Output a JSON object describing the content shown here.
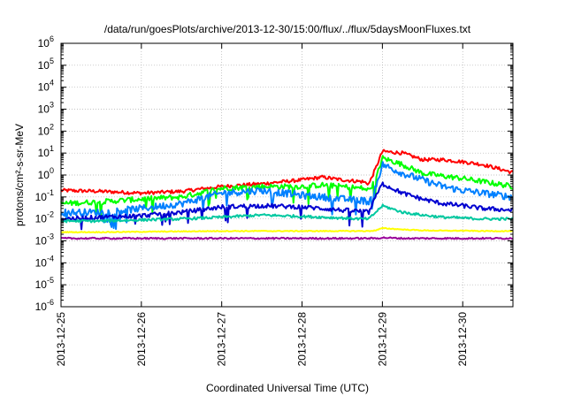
{
  "chart_data": {
    "type": "line",
    "title": "/data/run/goesPlots/archive/2013-12-30/15:00/flux/../flux/5daysMoonFluxes.txt",
    "xlabel": "Coordinated Universal Time (UTC)",
    "ylabel": "protons/cm²-s-sr-MeV",
    "y_scale": "log",
    "ylim": [
      1e-06,
      1000000.0
    ],
    "xlim": [
      "2013-12-25T00:00",
      "2013-12-30T15:00"
    ],
    "grid": true,
    "legend": "none",
    "x_ticks": [
      "2013-12-25",
      "2013-12-26",
      "2013-12-27",
      "2013-12-28",
      "2013-12-29",
      "2013-12-30"
    ],
    "y_ticks": [
      {
        "base": "10",
        "exp": "-6"
      },
      {
        "base": "10",
        "exp": "-5"
      },
      {
        "base": "10",
        "exp": "-4"
      },
      {
        "base": "10",
        "exp": "-3"
      },
      {
        "base": "10",
        "exp": "-2"
      },
      {
        "base": "10",
        "exp": "-1"
      },
      {
        "base": "10",
        "exp": "0"
      },
      {
        "base": "10",
        "exp": "1"
      },
      {
        "base": "10",
        "exp": "2"
      },
      {
        "base": "10",
        "exp": "3"
      },
      {
        "base": "10",
        "exp": "4"
      },
      {
        "base": "10",
        "exp": "5"
      },
      {
        "base": "10",
        "exp": "6"
      }
    ],
    "series": [
      {
        "color": "#ff0000",
        "x": [
          "2013-12-25T00:00",
          "2013-12-25T12:00",
          "2013-12-26T00:00",
          "2013-12-26T12:00",
          "2013-12-27T00:00",
          "2013-12-27T12:00",
          "2013-12-28T00:00",
          "2013-12-28T06:00",
          "2013-12-28T12:00",
          "2013-12-28T18:00",
          "2013-12-28T20:00",
          "2013-12-28T22:00",
          "2013-12-29T00:00",
          "2013-12-29T06:00",
          "2013-12-29T12:00",
          "2013-12-29T18:00",
          "2013-12-30T00:00",
          "2013-12-30T06:00",
          "2013-12-30T15:00"
        ],
        "y": [
          0.2,
          0.18,
          0.15,
          0.18,
          0.3,
          0.4,
          0.6,
          0.8,
          0.6,
          0.5,
          0.4,
          2.0,
          12,
          10,
          5,
          5,
          4,
          3,
          1.3
        ]
      },
      {
        "color": "#00ff00",
        "x": [
          "2013-12-25T00:00",
          "2013-12-25T12:00",
          "2013-12-26T00:00",
          "2013-12-26T12:00",
          "2013-12-27T00:00",
          "2013-12-27T12:00",
          "2013-12-28T00:00",
          "2013-12-28T06:00",
          "2013-12-28T12:00",
          "2013-12-28T18:00",
          "2013-12-28T20:00",
          "2013-12-28T22:00",
          "2013-12-29T00:00",
          "2013-12-29T06:00",
          "2013-12-29T12:00",
          "2013-12-29T18:00",
          "2013-12-30T00:00",
          "2013-12-30T06:00",
          "2013-12-30T15:00"
        ],
        "y": [
          0.05,
          0.06,
          0.08,
          0.1,
          0.25,
          0.3,
          0.3,
          0.35,
          0.3,
          0.25,
          0.2,
          0.6,
          6,
          3,
          1.2,
          0.9,
          0.7,
          0.5,
          0.3
        ]
      },
      {
        "color": "#0080ff",
        "x": [
          "2013-12-25T00:00",
          "2013-12-25T12:00",
          "2013-12-26T00:00",
          "2013-12-26T12:00",
          "2013-12-27T00:00",
          "2013-12-27T12:00",
          "2013-12-28T00:00",
          "2013-12-28T06:00",
          "2013-12-28T12:00",
          "2013-12-28T18:00",
          "2013-12-28T20:00",
          "2013-12-28T22:00",
          "2013-12-29T00:00",
          "2013-12-29T06:00",
          "2013-12-29T12:00",
          "2013-12-29T18:00",
          "2013-12-30T00:00",
          "2013-12-30T06:00",
          "2013-12-30T15:00"
        ],
        "y": [
          0.02,
          0.02,
          0.03,
          0.05,
          0.15,
          0.2,
          0.12,
          0.1,
          0.08,
          0.07,
          0.06,
          0.3,
          3,
          1.2,
          0.6,
          0.3,
          0.2,
          0.15,
          0.1
        ]
      },
      {
        "color": "#0000d0",
        "x": [
          "2013-12-25T00:00",
          "2013-12-25T12:00",
          "2013-12-26T00:00",
          "2013-12-26T12:00",
          "2013-12-27T00:00",
          "2013-12-27T12:00",
          "2013-12-28T00:00",
          "2013-12-28T06:00",
          "2013-12-28T12:00",
          "2013-12-28T18:00",
          "2013-12-28T20:00",
          "2013-12-28T22:00",
          "2013-12-29T00:00",
          "2013-12-29T06:00",
          "2013-12-29T12:00",
          "2013-12-29T18:00",
          "2013-12-30T00:00",
          "2013-12-30T06:00",
          "2013-12-30T15:00"
        ],
        "y": [
          0.01,
          0.012,
          0.014,
          0.02,
          0.035,
          0.04,
          0.035,
          0.03,
          0.025,
          0.022,
          0.02,
          0.1,
          0.4,
          0.15,
          0.08,
          0.05,
          0.04,
          0.03,
          0.025
        ]
      },
      {
        "color": "#00c8a0",
        "x": [
          "2013-12-25T00:00",
          "2013-12-25T12:00",
          "2013-12-26T00:00",
          "2013-12-26T12:00",
          "2013-12-27T00:00",
          "2013-12-27T12:00",
          "2013-12-28T00:00",
          "2013-12-28T06:00",
          "2013-12-28T12:00",
          "2013-12-28T18:00",
          "2013-12-28T20:00",
          "2013-12-28T22:00",
          "2013-12-29T00:00",
          "2013-12-29T06:00",
          "2013-12-29T12:00",
          "2013-12-29T18:00",
          "2013-12-30T00:00",
          "2013-12-30T06:00",
          "2013-12-30T15:00"
        ],
        "y": [
          0.008,
          0.008,
          0.009,
          0.01,
          0.012,
          0.015,
          0.013,
          0.012,
          0.011,
          0.01,
          0.01,
          0.02,
          0.04,
          0.02,
          0.015,
          0.012,
          0.011,
          0.01,
          0.01
        ]
      },
      {
        "color": "#ffff00",
        "x": [
          "2013-12-25T00:00",
          "2013-12-25T12:00",
          "2013-12-26T00:00",
          "2013-12-26T12:00",
          "2013-12-27T00:00",
          "2013-12-27T12:00",
          "2013-12-28T00:00",
          "2013-12-28T06:00",
          "2013-12-28T12:00",
          "2013-12-28T18:00",
          "2013-12-28T20:00",
          "2013-12-28T22:00",
          "2013-12-29T00:00",
          "2013-12-29T06:00",
          "2013-12-29T12:00",
          "2013-12-29T18:00",
          "2013-12-30T00:00",
          "2013-12-30T06:00",
          "2013-12-30T15:00"
        ],
        "y": [
          0.0025,
          0.0025,
          0.0026,
          0.0027,
          0.0028,
          0.0028,
          0.0028,
          0.0028,
          0.0028,
          0.0028,
          0.0028,
          0.003,
          0.0038,
          0.0033,
          0.003,
          0.0029,
          0.0029,
          0.0028,
          0.0028
        ]
      },
      {
        "color": "#990099",
        "x": [
          "2013-12-25T00:00",
          "2013-12-25T12:00",
          "2013-12-26T00:00",
          "2013-12-26T12:00",
          "2013-12-27T00:00",
          "2013-12-27T12:00",
          "2013-12-28T00:00",
          "2013-12-28T06:00",
          "2013-12-28T12:00",
          "2013-12-28T18:00",
          "2013-12-28T20:00",
          "2013-12-28T22:00",
          "2013-12-29T00:00",
          "2013-12-29T06:00",
          "2013-12-29T12:00",
          "2013-12-29T18:00",
          "2013-12-30T00:00",
          "2013-12-30T06:00",
          "2013-12-30T15:00"
        ],
        "y": [
          0.0013,
          0.0013,
          0.0013,
          0.0013,
          0.0013,
          0.0013,
          0.0013,
          0.0013,
          0.0013,
          0.0013,
          0.0013,
          0.0013,
          0.0014,
          0.0013,
          0.0013,
          0.0013,
          0.0013,
          0.0013,
          0.0013
        ]
      }
    ]
  }
}
